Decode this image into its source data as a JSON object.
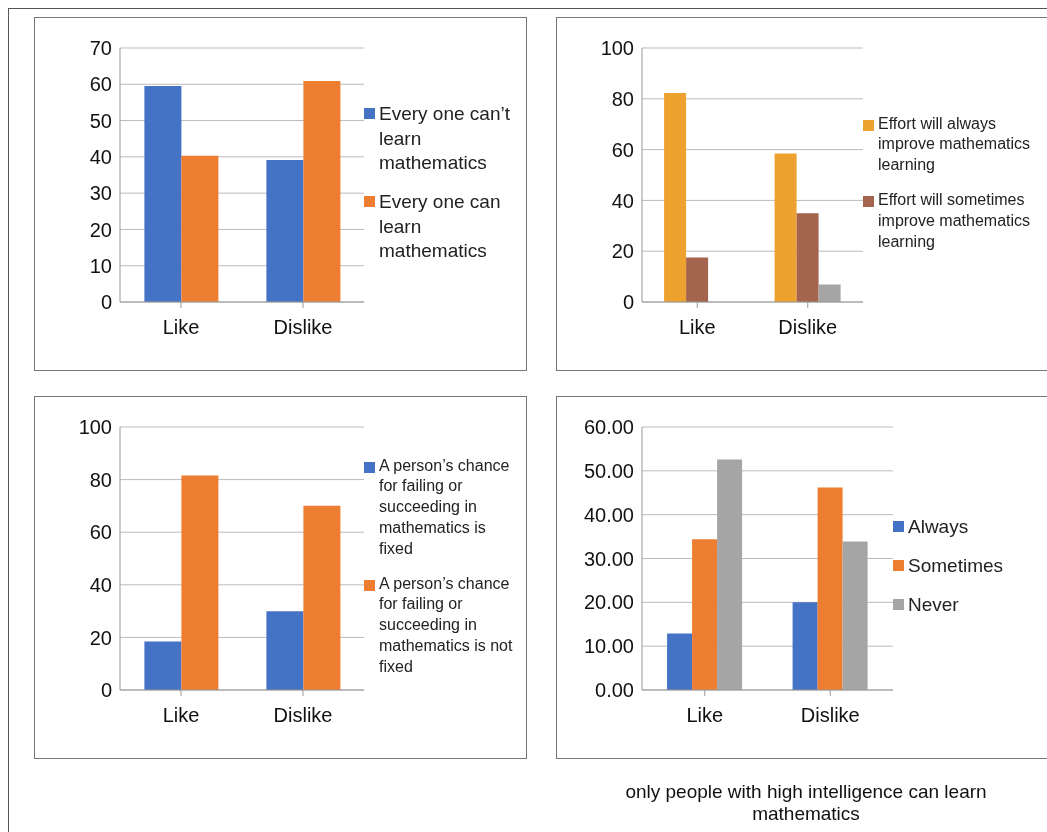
{
  "chart_data": [
    {
      "type": "bar",
      "categories": [
        "Like",
        "Dislike"
      ],
      "series": [
        {
          "name": "Every one can’t learn mathematics",
          "color": "#4472c4",
          "values": [
            59.5,
            39.1
          ]
        },
        {
          "name": "Every one can learn mathematics",
          "color": "#ed7d31",
          "values": [
            40.3,
            60.9
          ]
        }
      ],
      "ylim": [
        0,
        70
      ],
      "yticks": [
        0,
        10,
        20,
        30,
        40,
        50,
        60,
        70
      ],
      "grid": "y",
      "legend": "right"
    },
    {
      "type": "bar",
      "categories": [
        "Like",
        "Dislike"
      ],
      "series": [
        {
          "name": "Effort will always improve mathematics learning",
          "color": "#eda230",
          "values": [
            82.3,
            58.5
          ]
        },
        {
          "name": "Effort will sometimes improve mathematics learning",
          "color": "#a5644e",
          "values": [
            17.5,
            34.9
          ]
        },
        {
          "color": "#a5a5a5",
          "values": [
            0,
            6.9
          ]
        }
      ],
      "ylim": [
        0,
        100
      ],
      "yticks": [
        0,
        20,
        40,
        60,
        80,
        100
      ],
      "grid": "y",
      "legend": "right"
    },
    {
      "type": "bar",
      "categories": [
        "Like",
        "Dislike"
      ],
      "series": [
        {
          "name": "A person’s chance for failing or succeeding in mathematics is fixed",
          "color": "#4472c4",
          "values": [
            18.4,
            29.9
          ]
        },
        {
          "name": "A person’s chance for failing or succeeding in mathematics is not fixed",
          "color": "#ed7d31",
          "values": [
            81.6,
            70.1
          ]
        }
      ],
      "ylim": [
        0,
        100
      ],
      "yticks": [
        0,
        20,
        40,
        60,
        80,
        100
      ],
      "grid": "y",
      "legend": "right"
    },
    {
      "type": "bar",
      "categories": [
        "Like",
        "Dislike"
      ],
      "series": [
        {
          "name": "Always",
          "color": "#4472c4",
          "values": [
            12.9,
            20.0
          ]
        },
        {
          "name": "Sometimes",
          "color": "#ed7d31",
          "values": [
            34.4,
            46.2
          ]
        },
        {
          "name": "Never",
          "color": "#a5a5a5",
          "values": [
            52.6,
            33.9
          ]
        }
      ],
      "ylim": [
        0,
        60
      ],
      "yticks": [
        {
          "value": 0,
          "label": "0.00"
        },
        {
          "value": 10,
          "label": "10.00"
        },
        {
          "value": 20,
          "label": "20.00"
        },
        {
          "value": 30,
          "label": "30.00"
        },
        {
          "value": 40,
          "label": "40.00"
        },
        {
          "value": 50,
          "label": "50.00"
        },
        {
          "value": 60,
          "label": "60.00"
        }
      ],
      "grid": "y",
      "legend": "right",
      "annotations": [
        "only people with high intelligence can learn mathematics"
      ]
    }
  ]
}
